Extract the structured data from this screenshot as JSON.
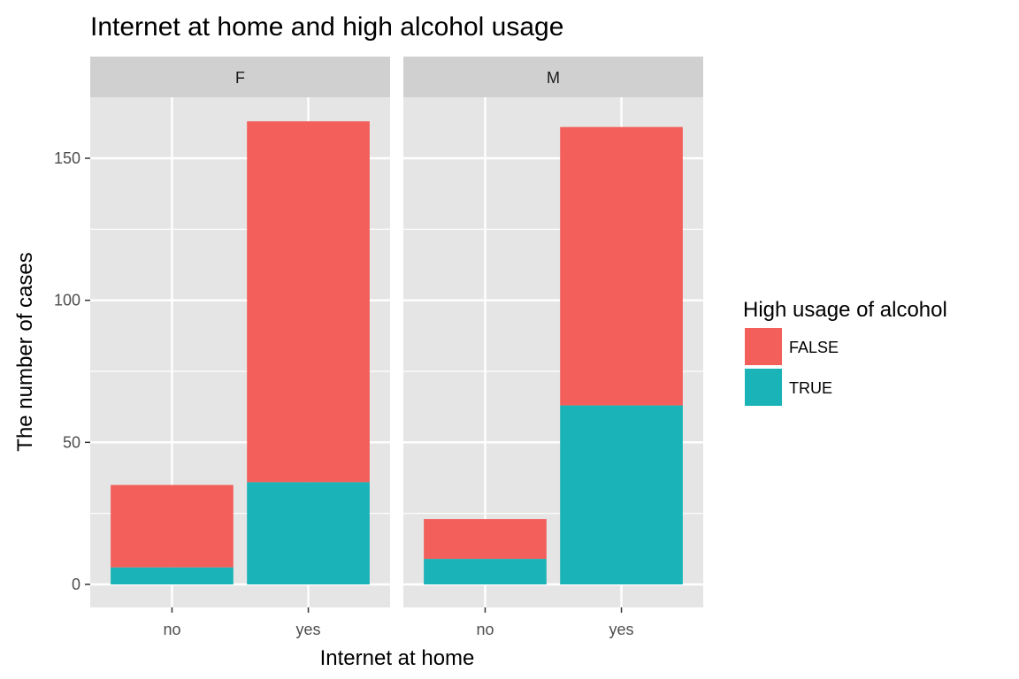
{
  "chart_data": {
    "type": "bar",
    "stacked": true,
    "title": "Internet at home and high alcohol usage",
    "xlabel": "Internet at home",
    "ylabel": "The number of cases",
    "ylim": [
      0,
      180
    ],
    "yticks": [
      0,
      50,
      100,
      150
    ],
    "grid": true,
    "legend": {
      "title": "High usage of alcohol",
      "placement": "right",
      "entries": [
        {
          "label": "FALSE",
          "color": "#F8766D"
        },
        {
          "label": "TRUE",
          "color": "#00BFC4"
        }
      ]
    },
    "categories": [
      "no",
      "yes"
    ],
    "facets": [
      {
        "label": "F",
        "series": [
          {
            "name": "FALSE",
            "values": [
              29,
              127
            ]
          },
          {
            "name": "TRUE",
            "values": [
              6,
              36
            ]
          }
        ]
      },
      {
        "label": "M",
        "series": [
          {
            "name": "FALSE",
            "values": [
              14,
              98
            ]
          },
          {
            "name": "TRUE",
            "values": [
              9,
              63
            ]
          }
        ]
      }
    ],
    "colors": {
      "FALSE": "#F35F5A",
      "TRUE": "#1AB3B8",
      "panel_bg": "#E5E5E5",
      "strip_bg": "#D0D0D0",
      "grid": "#FFFFFF"
    }
  }
}
